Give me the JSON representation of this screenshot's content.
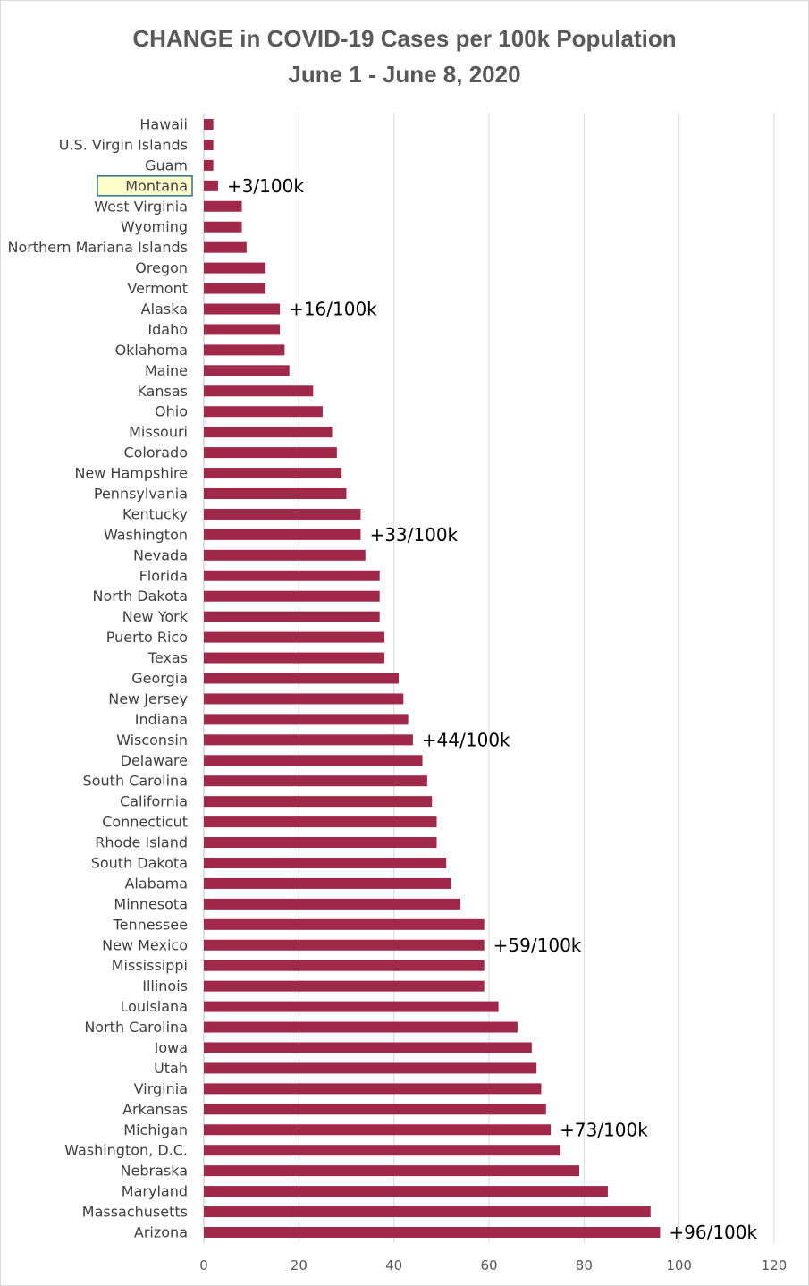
{
  "chart_data": {
    "type": "bar",
    "orientation": "horizontal",
    "title": "CHANGE in COVID-19 Cases per 100k Population",
    "subtitle": "June 1 - June 8, 2020",
    "categories": [
      "Hawaii",
      "U.S. Virgin Islands",
      "Guam",
      "Montana",
      "West Virginia",
      "Wyoming",
      "Northern Mariana Islands",
      "Oregon",
      "Vermont",
      "Alaska",
      "Idaho",
      "Oklahoma",
      "Maine",
      "Kansas",
      "Ohio",
      "Missouri",
      "Colorado",
      "New Hampshire",
      "Pennsylvania",
      "Kentucky",
      "Washington",
      "Nevada",
      "Florida",
      "North Dakota",
      "New York",
      "Puerto Rico",
      "Texas",
      "Georgia",
      "New Jersey",
      "Indiana",
      "Wisconsin",
      "Delaware",
      "South Carolina",
      "California",
      "Connecticut",
      "Rhode Island",
      "South Dakota",
      "Alabama",
      "Minnesota",
      "Tennessee",
      "New Mexico",
      "Mississippi",
      "Illinois",
      "Louisiana",
      "North Carolina",
      "Iowa",
      "Utah",
      "Virginia",
      "Arkansas",
      "Michigan",
      "Washington, D.C.",
      "Nebraska",
      "Maryland",
      "Massachusetts",
      "Arizona"
    ],
    "values": [
      2,
      2,
      2,
      3,
      8,
      8,
      9,
      13,
      13,
      16,
      16,
      17,
      18,
      23,
      25,
      27,
      28,
      29,
      30,
      33,
      33,
      34,
      37,
      37,
      37,
      38,
      38,
      41,
      42,
      43,
      44,
      46,
      47,
      48,
      49,
      49,
      51,
      52,
      54,
      59,
      59,
      59,
      59,
      62,
      66,
      69,
      70,
      71,
      72,
      73,
      75,
      79,
      85,
      94,
      96
    ],
    "xlim": [
      0,
      120
    ],
    "xticks": [
      0,
      20,
      40,
      60,
      80,
      100,
      120
    ],
    "grid": "vertical",
    "bar_color": "#A0294A",
    "highlight": {
      "category": "Montana",
      "fill": "#FFFFCC",
      "border": "#31708F",
      "text_color": "#8B8B3C"
    },
    "annotations": [
      {
        "category": "Montana",
        "text": "+3/100k"
      },
      {
        "category": "Alaska",
        "text": "+16/100k"
      },
      {
        "category": "Washington",
        "text": "+33/100k"
      },
      {
        "category": "Wisconsin",
        "text": "+44/100k"
      },
      {
        "category": "New Mexico",
        "text": "+59/100k"
      },
      {
        "category": "Michigan",
        "text": "+73/100k"
      },
      {
        "category": "Arizona",
        "text": "+96/100k"
      }
    ]
  }
}
